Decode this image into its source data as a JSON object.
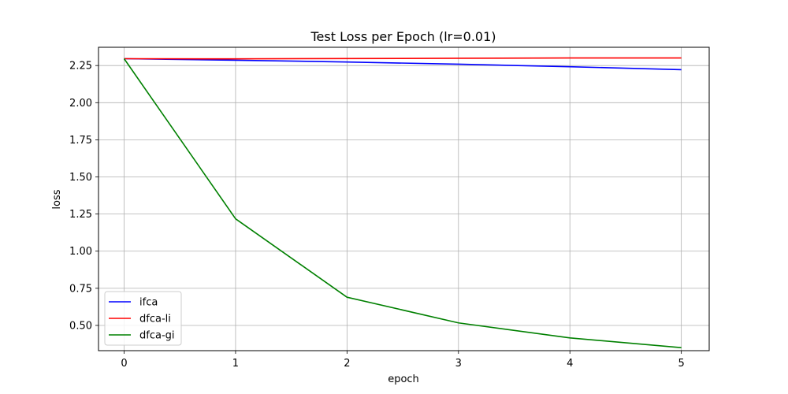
{
  "chart_data": {
    "type": "line",
    "title": "Test Loss per Epoch (lr=0.01)",
    "xlabel": "epoch",
    "ylabel": "loss",
    "x": [
      0,
      1,
      2,
      3,
      4,
      5
    ],
    "xlim": [
      -0.23,
      5.25
    ],
    "ylim": [
      0.33,
      2.373
    ],
    "xticks": [
      "0",
      "1",
      "2",
      "3",
      "4",
      "5"
    ],
    "xtick_values": [
      0,
      1,
      2,
      3,
      4,
      5
    ],
    "yticks": [
      "0.50",
      "0.75",
      "1.00",
      "1.25",
      "1.50",
      "1.75",
      "2.00",
      "2.25"
    ],
    "ytick_values": [
      0.5,
      0.75,
      1.0,
      1.25,
      1.5,
      1.75,
      2.0,
      2.25
    ],
    "grid": true,
    "legend_position": "lower-left",
    "series": [
      {
        "name": "ifca",
        "color": "#0000ff",
        "values": [
          2.296,
          2.286,
          2.274,
          2.259,
          2.242,
          2.222
        ]
      },
      {
        "name": "dfca-li",
        "color": "#ff0000",
        "values": [
          2.296,
          2.295,
          2.297,
          2.299,
          2.301,
          2.301
        ]
      },
      {
        "name": "dfca-gi",
        "color": "#008000",
        "values": [
          2.296,
          1.218,
          0.69,
          0.517,
          0.416,
          0.35
        ]
      }
    ]
  }
}
